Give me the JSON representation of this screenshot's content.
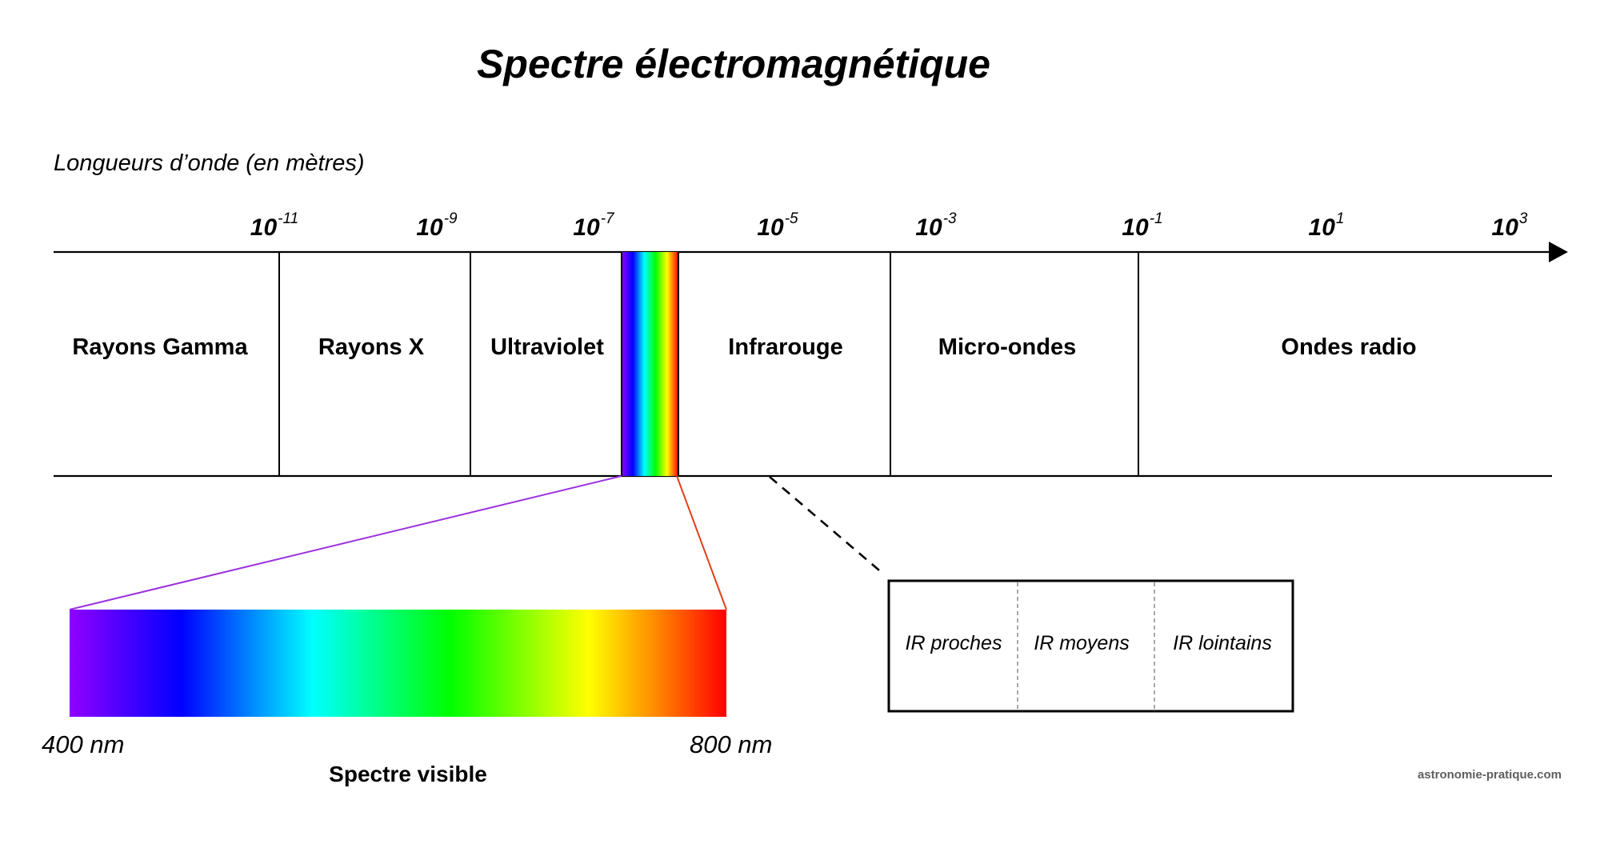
{
  "title": "Spectre électromagnétique",
  "axis_label": "Longueurs d’onde (en mètres)",
  "ticks": [
    {
      "base": "10",
      "exp": "-11"
    },
    {
      "base": "10",
      "exp": "-9"
    },
    {
      "base": "10",
      "exp": "-7"
    },
    {
      "base": "10",
      "exp": "-5"
    },
    {
      "base": "10",
      "exp": "-3"
    },
    {
      "base": "10",
      "exp": "-1"
    },
    {
      "base": "10",
      "exp": "1"
    },
    {
      "base": "10",
      "exp": "3"
    }
  ],
  "regions": [
    {
      "label": "Rayons Gamma"
    },
    {
      "label": "Rayons X"
    },
    {
      "label": "Ultraviolet"
    },
    {
      "label": "Infrarouge"
    },
    {
      "label": "Micro-ondes"
    },
    {
      "label": "Ondes radio"
    }
  ],
  "infrared_subdivisions": [
    "IR proches",
    "IR moyens",
    "IR lointains"
  ],
  "visible_spectrum": {
    "label": "Spectre visible",
    "start_label": "400 nm",
    "end_label": "800 nm",
    "colors": [
      "#8f00ff",
      "#0000ff",
      "#00ffff",
      "#00ff00",
      "#ffff00",
      "#ff0000"
    ]
  },
  "connector_colors": {
    "violet": "#9b30e0",
    "red": "#e0401a"
  },
  "credit": "astronomie-pratique.com"
}
